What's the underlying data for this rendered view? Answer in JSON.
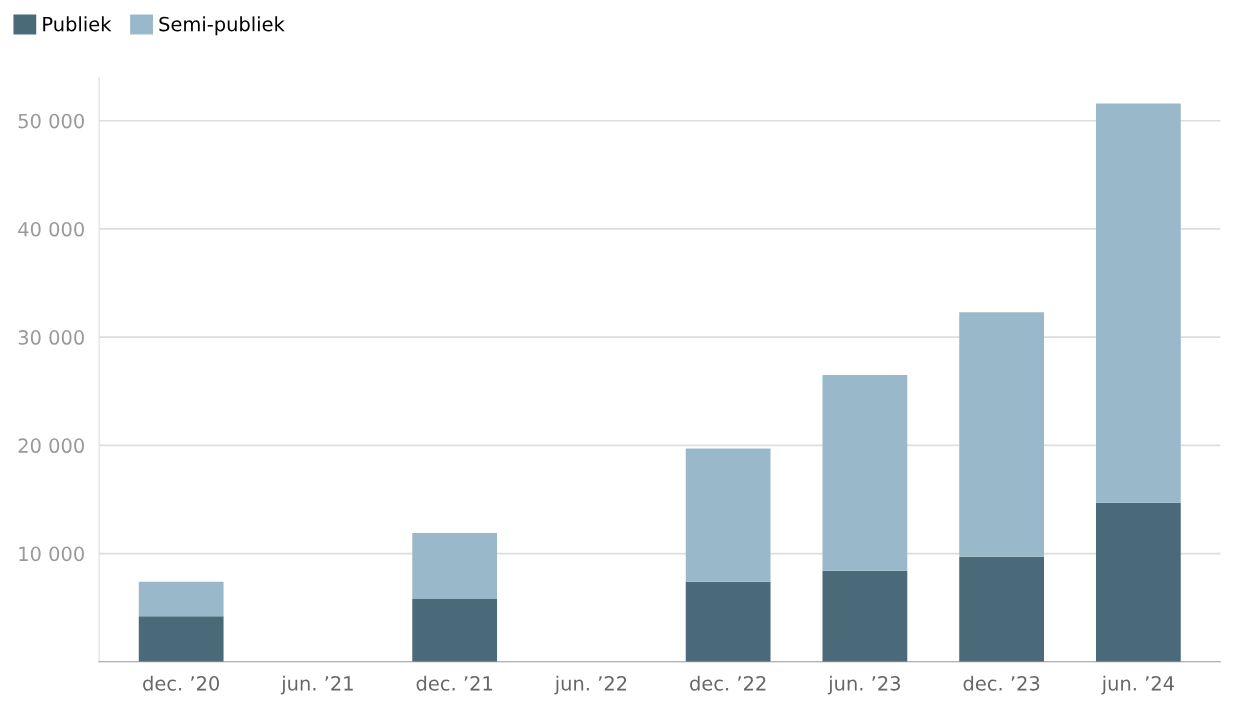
{
  "chart_data": {
    "type": "bar",
    "stacked": true,
    "categories": [
      "dec. ’20",
      "jun. ’21",
      "dec. ’21",
      "jun. ’22",
      "dec. ’22",
      "jun. ’23",
      "dec. ’23",
      "jun. ’24"
    ],
    "series": [
      {
        "name": "Publiek",
        "color": "#4a6a7a",
        "values": [
          4200,
          null,
          5800,
          null,
          7400,
          8400,
          9700,
          14700
        ]
      },
      {
        "name": "Semi-publiek",
        "color": "#99b8c9",
        "values": [
          3200,
          null,
          6100,
          null,
          12300,
          18100,
          22600,
          36900
        ]
      }
    ],
    "yticks": [
      {
        "value": 10000,
        "label": "10 000"
      },
      {
        "value": 20000,
        "label": "20 000"
      },
      {
        "value": 30000,
        "label": "30 000"
      },
      {
        "value": 40000,
        "label": "40 000"
      },
      {
        "value": 50000,
        "label": "50 000"
      }
    ],
    "ylim": [
      0,
      54000
    ],
    "grid": "y",
    "legend": "top left"
  }
}
